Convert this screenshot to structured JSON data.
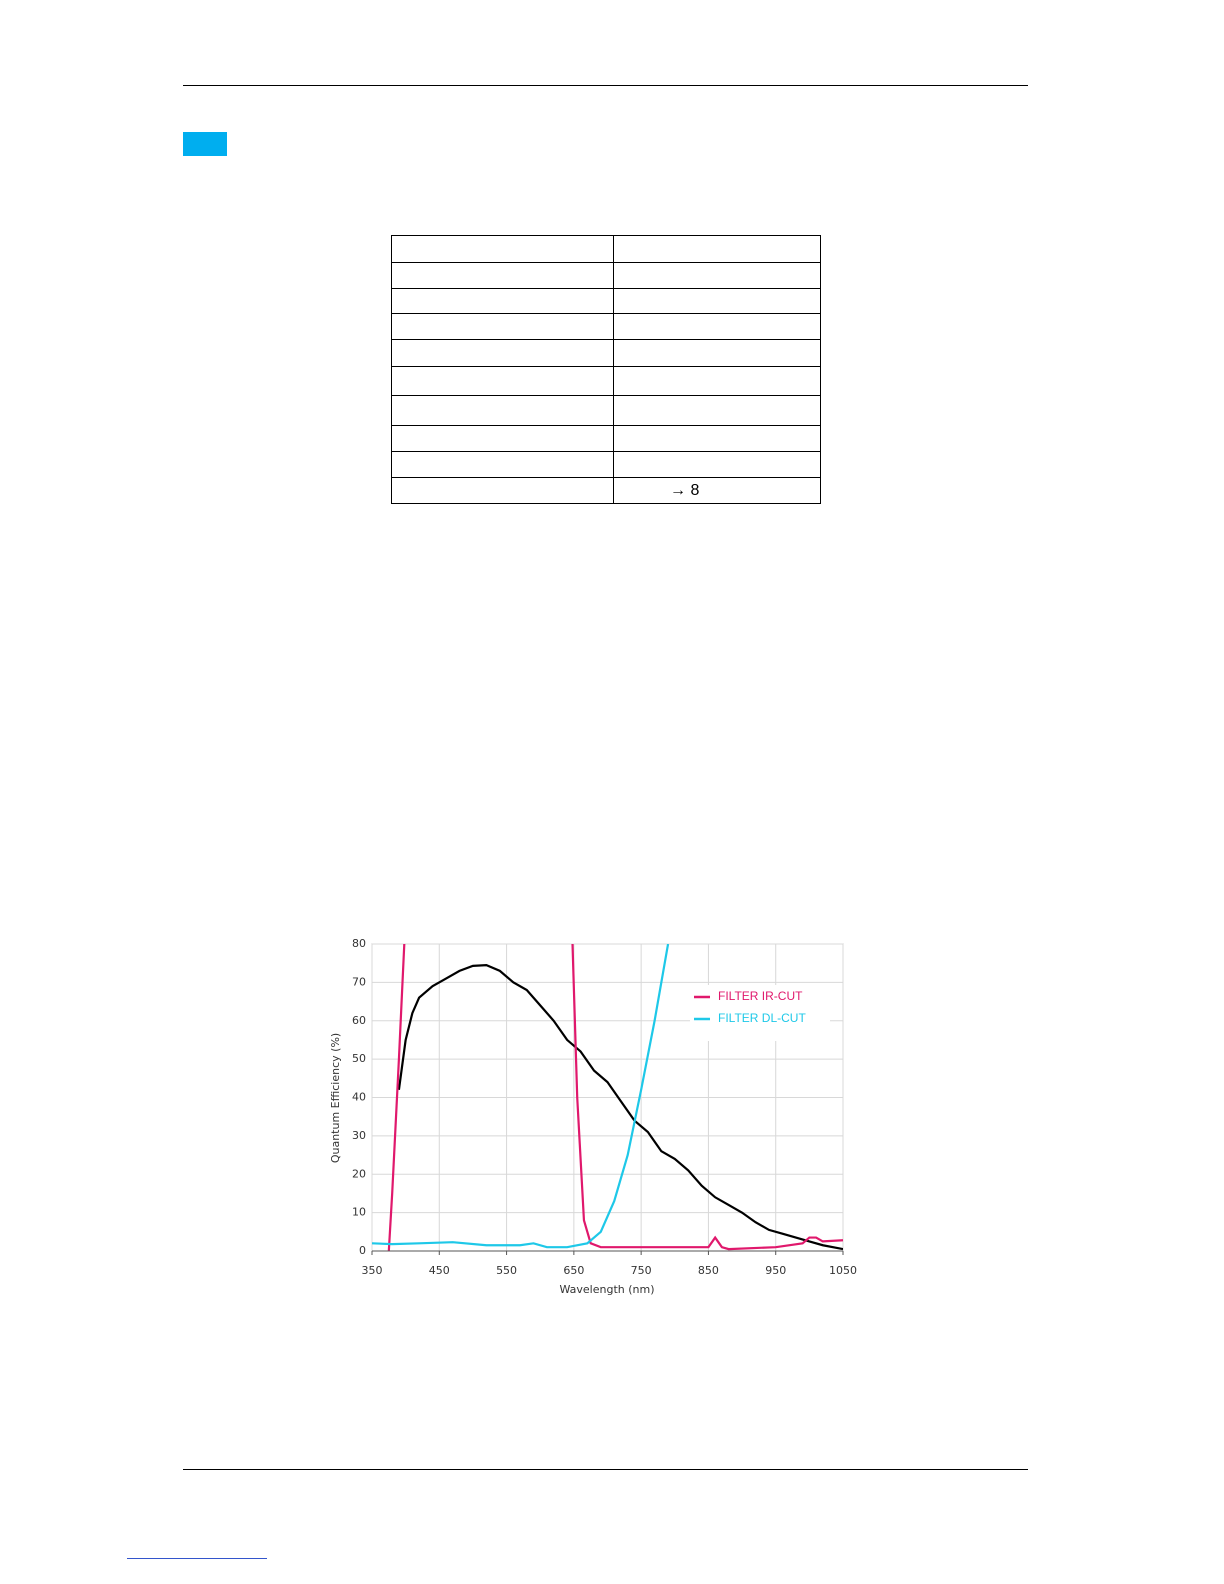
{
  "table": {
    "last_row_value": "→ 8"
  },
  "chart_data": {
    "type": "line",
    "xlabel": "Wavelength (nm)",
    "ylabel": "Quantum Efficiency (%)",
    "xlim": [
      350,
      1050
    ],
    "ylim": [
      0,
      80
    ],
    "xticks": [
      350,
      450,
      550,
      650,
      750,
      850,
      950,
      1050
    ],
    "yticks": [
      0,
      10,
      20,
      30,
      40,
      50,
      60,
      70,
      80
    ],
    "grid": true,
    "legend": "upper right",
    "series": [
      {
        "color": "#000000",
        "x": [
          390,
          400,
          410,
          420,
          440,
          460,
          480,
          500,
          520,
          540,
          560,
          580,
          600,
          620,
          640,
          660,
          680,
          700,
          720,
          740,
          760,
          780,
          800,
          820,
          840,
          860,
          880,
          900,
          920,
          940,
          960,
          980,
          1000,
          1020,
          1050
        ],
        "values": [
          42,
          55,
          62,
          66,
          69,
          71,
          73,
          74.3,
          74.5,
          73,
          70,
          68,
          64,
          60,
          55,
          52,
          47,
          44,
          39,
          34,
          31,
          26,
          24,
          21,
          17,
          14,
          12,
          10,
          7.5,
          5.5,
          4.5,
          3.5,
          2.5,
          1.5,
          0.5
        ]
      },
      {
        "name": "FILTER IR-CUT",
        "color": "#e0186c",
        "x": [
          375,
          380,
          390,
          398,
          520,
          648,
          655,
          665,
          675,
          690,
          750,
          850,
          860,
          870,
          880,
          950,
          990,
          1000,
          1010,
          1020,
          1050
        ],
        "values": [
          0,
          15,
          50,
          80,
          null,
          80,
          40,
          8,
          2,
          1,
          1,
          1,
          3.5,
          1,
          0.5,
          1,
          2,
          3.5,
          3.5,
          2.5,
          2.8
        ]
      },
      {
        "name": "FILTER DL-CUT",
        "color": "#1ec8e8",
        "x": [
          350,
          380,
          420,
          470,
          520,
          570,
          590,
          610,
          640,
          670,
          690,
          710,
          730,
          750,
          770,
          790
        ],
        "values": [
          2,
          1.8,
          2,
          2.3,
          1.5,
          1.5,
          2,
          1,
          1,
          2,
          5,
          13,
          25,
          42,
          60,
          80
        ]
      }
    ]
  }
}
